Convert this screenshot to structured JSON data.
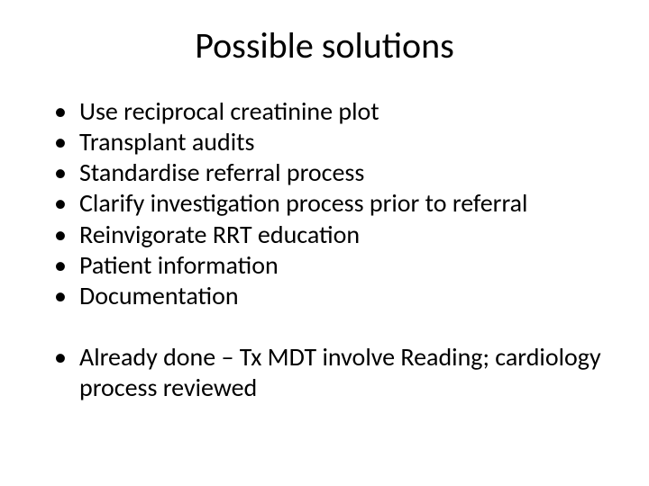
{
  "slide": {
    "title": "Possible solutions",
    "bullets_main": [
      "Use reciprocal creatinine plot",
      "Transplant audits",
      "Standardise referral process",
      "Clarify investigation process prior to referral",
      "Reinvigorate RRT education",
      "Patient information",
      "Documentation"
    ],
    "bullets_secondary": [
      "Already done – Tx MDT involve Reading; cardiology process reviewed"
    ],
    "styling": {
      "background_color": "#ffffff",
      "text_color": "#000000",
      "title_fontsize": 40,
      "bullet_fontsize": 28,
      "font_family": "Calibri"
    }
  }
}
